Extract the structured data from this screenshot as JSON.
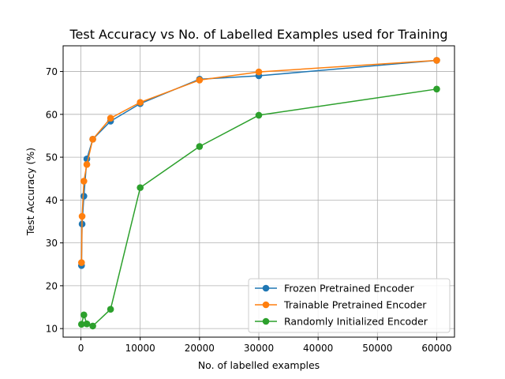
{
  "chart_data": {
    "type": "line",
    "title": "Test Accuracy vs No. of Labelled Examples used for Training",
    "xlabel": "No. of labelled examples",
    "ylabel": "Test Accuracy (%)",
    "xlim": [
      -3000,
      63000
    ],
    "ylim": [
      8,
      76
    ],
    "xticks": [
      0,
      10000,
      20000,
      30000,
      40000,
      50000,
      60000
    ],
    "yticks": [
      10,
      20,
      30,
      40,
      50,
      60,
      70
    ],
    "grid": true,
    "legend_position": "lower-right",
    "series": [
      {
        "name": "Frozen Pretrained Encoder",
        "color": "#1f77b4",
        "x": [
          100,
          200,
          500,
          1000,
          2000,
          5000,
          10000,
          20000,
          30000,
          60000
        ],
        "y": [
          24.7,
          34.4,
          40.9,
          49.6,
          54.2,
          58.4,
          62.5,
          68.2,
          69.0,
          72.6
        ]
      },
      {
        "name": "Trainable Pretrained Encoder",
        "color": "#ff7f0e",
        "x": [
          100,
          200,
          500,
          1000,
          2000,
          5000,
          10000,
          20000,
          30000,
          60000
        ],
        "y": [
          25.4,
          36.2,
          44.4,
          48.3,
          54.2,
          59.1,
          62.8,
          68.0,
          69.9,
          72.6
        ]
      },
      {
        "name": "Randomly Initialized Encoder",
        "color": "#2ca02c",
        "x": [
          100,
          500,
          1000,
          2000,
          5000,
          10000,
          20000,
          30000,
          60000
        ],
        "y": [
          11.0,
          13.2,
          11.1,
          10.6,
          14.5,
          42.9,
          52.5,
          59.8,
          65.9
        ]
      }
    ]
  }
}
